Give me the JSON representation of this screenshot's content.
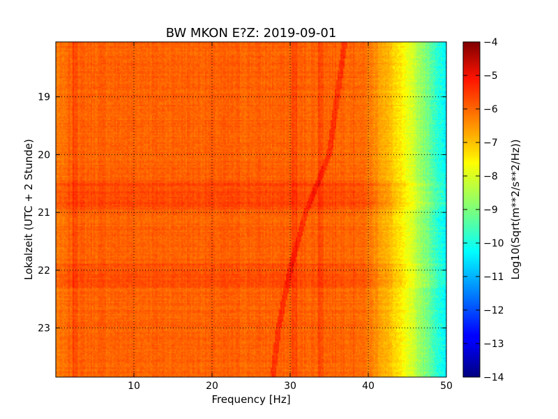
{
  "chart_data": {
    "type": "heatmap",
    "title": "BW MKON E?Z: 2019-09-01",
    "xlabel": "Frequency [Hz]",
    "ylabel": "Lokalzeit (UTC + 2 Stunde)",
    "xlim": [
      0,
      50
    ],
    "ylim": [
      23.85,
      18.05
    ],
    "x_ticks": [
      {
        "value": 10,
        "label": "10"
      },
      {
        "value": 20,
        "label": "20"
      },
      {
        "value": 30,
        "label": "30"
      },
      {
        "value": 40,
        "label": "40"
      },
      {
        "value": 50,
        "label": "50"
      }
    ],
    "y_ticks": [
      {
        "value": 19,
        "label": "19"
      },
      {
        "value": 20,
        "label": "20"
      },
      {
        "value": 21,
        "label": "21"
      },
      {
        "value": 22,
        "label": "22"
      },
      {
        "value": 23,
        "label": "23"
      }
    ],
    "grid": true,
    "colormap": "jet",
    "colorbar": {
      "label": "Log10(Sqrt(m**2/s**2/Hz))",
      "range": [
        -14,
        -4
      ],
      "ticks": [
        {
          "value": -4,
          "label": "−4"
        },
        {
          "value": -5,
          "label": "−5"
        },
        {
          "value": -6,
          "label": "−6"
        },
        {
          "value": -7,
          "label": "−7"
        },
        {
          "value": -8,
          "label": "−8"
        },
        {
          "value": -9,
          "label": "−9"
        },
        {
          "value": -10,
          "label": "−10"
        },
        {
          "value": -11,
          "label": "−11"
        },
        {
          "value": -12,
          "label": "−12"
        },
        {
          "value": -13,
          "label": "−13"
        },
        {
          "value": -14,
          "label": "−14"
        }
      ]
    },
    "features": {
      "background_level": -6.0,
      "rolloff_start_hz": 38,
      "level_at_50hz": -10.5,
      "drifting_line": [
        {
          "time": 18.05,
          "freq": 37.0
        },
        {
          "time": 20.0,
          "freq": 35.0
        },
        {
          "time": 20.5,
          "freq": 33.5
        },
        {
          "time": 21.0,
          "freq": 32.0
        },
        {
          "time": 22.0,
          "freq": 30.0
        },
        {
          "time": 23.0,
          "freq": 28.5
        },
        {
          "time": 23.85,
          "freq": 27.8
        }
      ],
      "lines_hz": [
        2.5,
        30.5,
        34.0
      ],
      "noisy_intervals": [
        [
          20.45,
          20.95
        ],
        [
          21.9,
          22.3
        ]
      ]
    }
  }
}
